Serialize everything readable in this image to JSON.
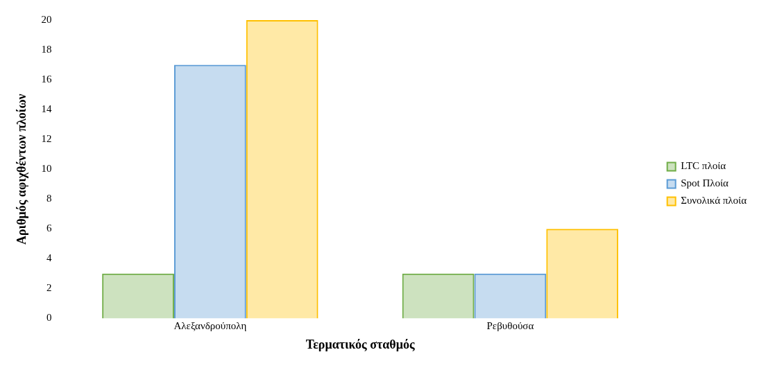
{
  "chart_data": {
    "type": "bar",
    "xlabel": "Τερματικός σταθμός",
    "ylabel": "Αριθμός αφιχθέντων πλοίων",
    "categories": [
      "Αλεξανδρούπολη",
      "Ρεβυθούσα"
    ],
    "series": [
      {
        "name": "LTC πλοία",
        "color": "#70ad47",
        "values": [
          3,
          3
        ]
      },
      {
        "name": "Spot Πλοία",
        "color": "#5b9bd5",
        "values": [
          17,
          3
        ]
      },
      {
        "name": "Συνολικά πλοία",
        "color": "#ffc000",
        "values": [
          20,
          6
        ]
      }
    ],
    "ylim": [
      0,
      20
    ],
    "yticks": [
      0,
      2,
      4,
      6,
      8,
      10,
      12,
      14,
      16,
      18,
      20
    ],
    "grid": false,
    "legend": "right"
  }
}
